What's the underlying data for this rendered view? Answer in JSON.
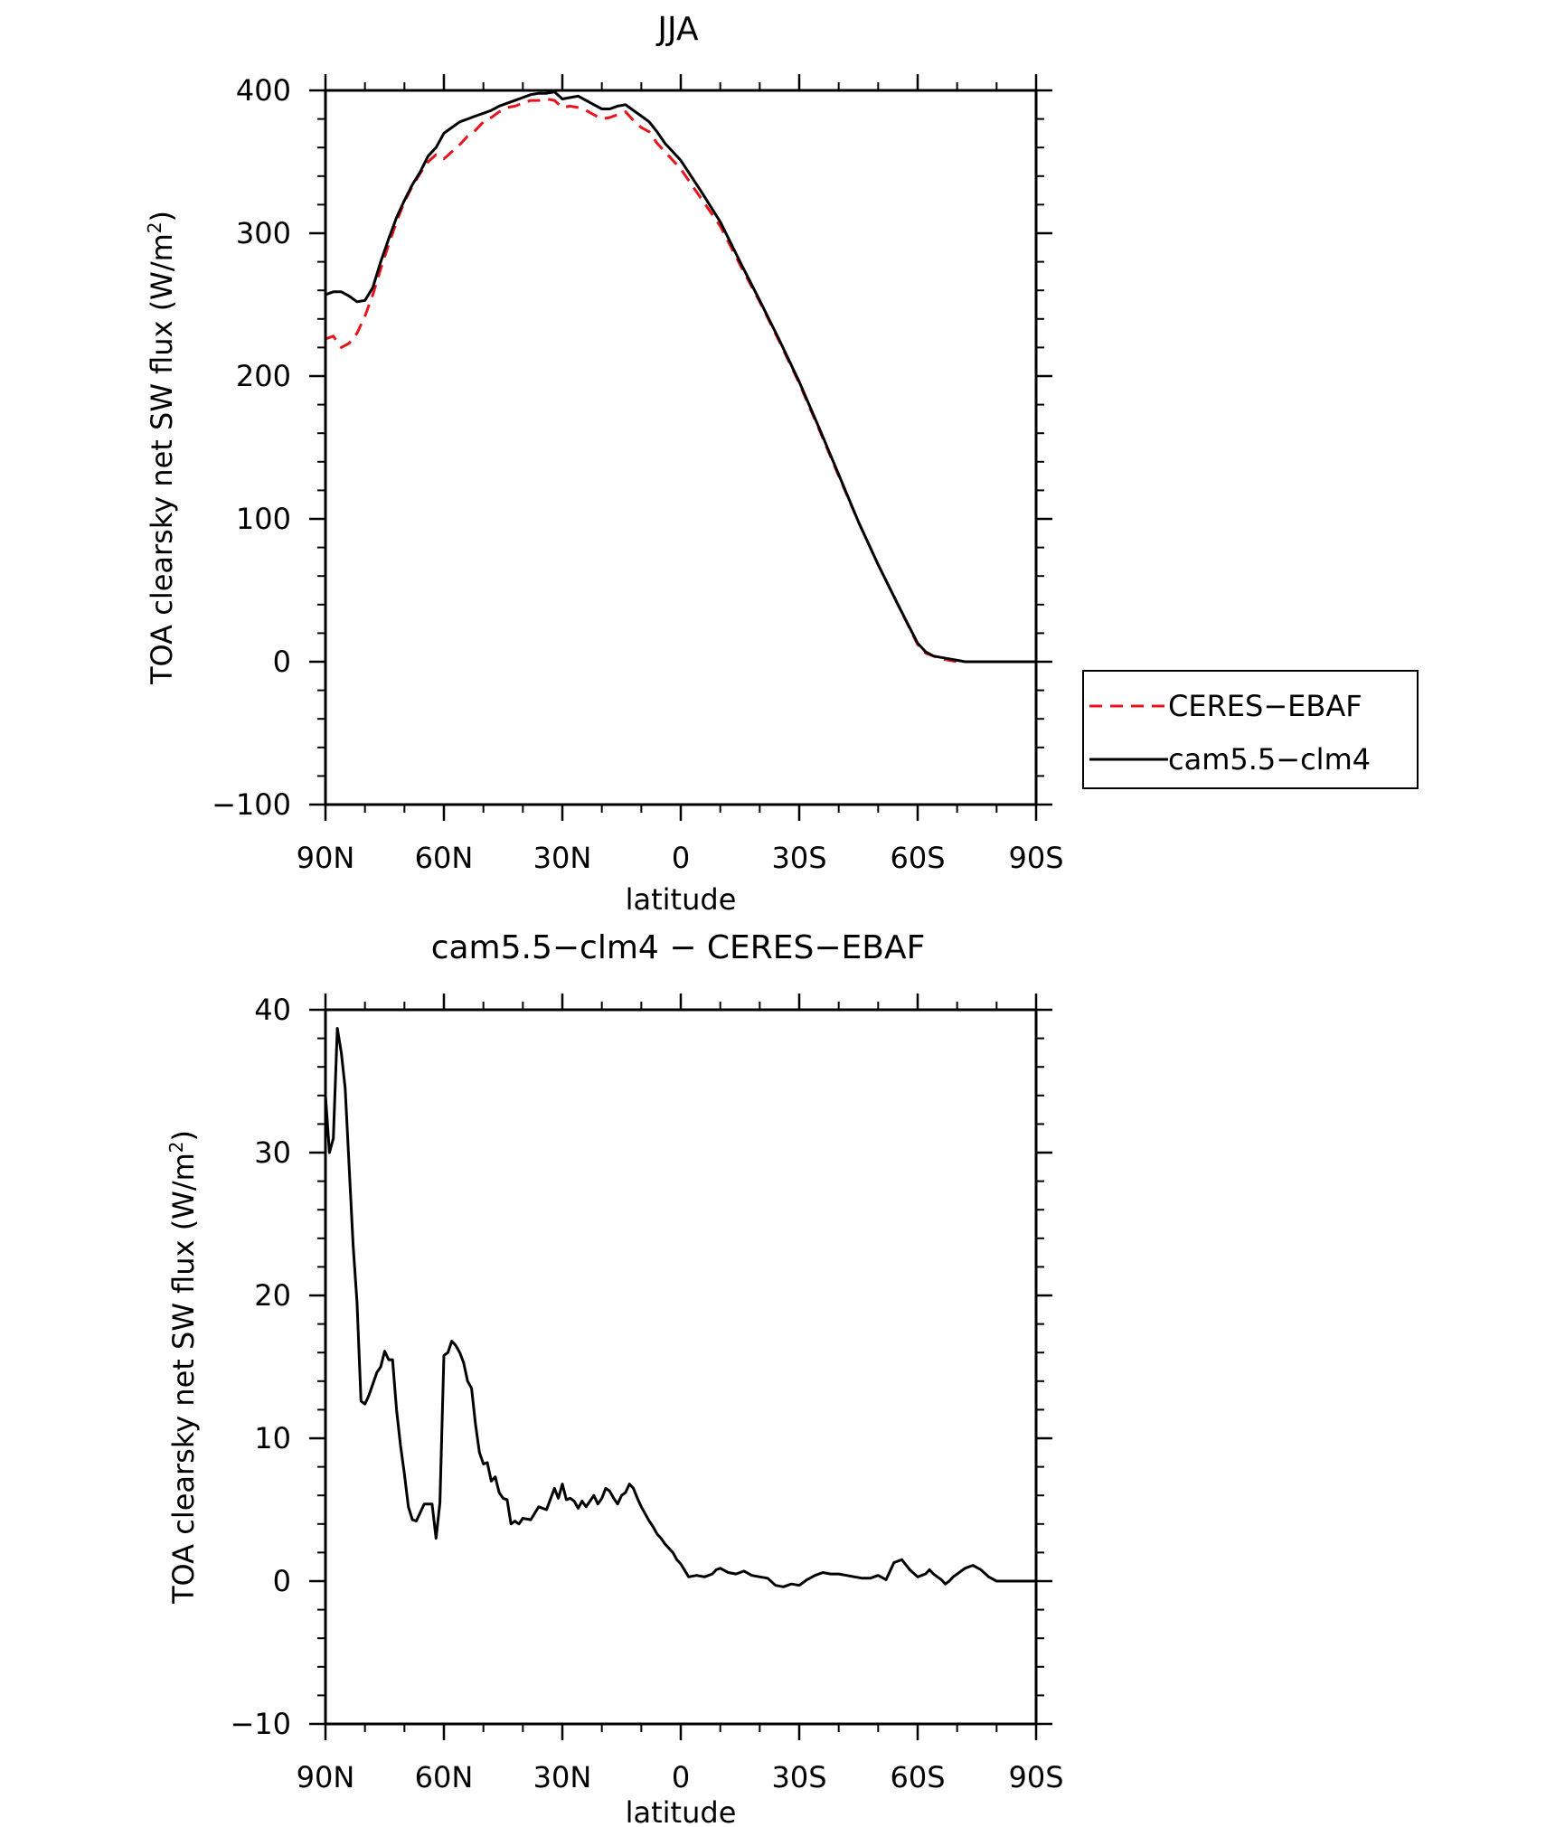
{
  "chart_data": [
    {
      "type": "line",
      "title": "JJA",
      "xlabel": "latitude",
      "ylabel_parts": [
        "TOA clearsky net SW flux (W/m",
        "2",
        ")"
      ],
      "ylim": [
        -100,
        400
      ],
      "yticks": [
        {
          "value": 400,
          "label": "400"
        },
        {
          "value": 300,
          "label": "300"
        },
        {
          "value": 200,
          "label": "200"
        },
        {
          "value": 100,
          "label": "100"
        },
        {
          "value": 0,
          "label": "0"
        },
        {
          "value": -100,
          "label": "−100"
        }
      ],
      "yminor_step": 20,
      "xlim": [
        90,
        -90
      ],
      "xticks": [
        {
          "value": 90,
          "label": "90N"
        },
        {
          "value": 60,
          "label": "60N"
        },
        {
          "value": 30,
          "label": "30N"
        },
        {
          "value": 0,
          "label": "0"
        },
        {
          "value": -30,
          "label": "30S"
        },
        {
          "value": -60,
          "label": "60S"
        },
        {
          "value": -90,
          "label": "90S"
        }
      ],
      "xminor_step": 10,
      "legend": {
        "placement": "right-middle",
        "entries": [
          {
            "name": "CERES−EBAF",
            "color": "#e8141b",
            "style": "dashed"
          },
          {
            "name": "cam5.5−clm4",
            "color": "#000000",
            "style": "solid"
          }
        ]
      },
      "series": [
        {
          "name": "CERES−EBAF",
          "color": "#e8141b",
          "style": "dashed",
          "x": [
            90,
            88,
            86,
            84,
            82,
            80,
            78,
            76,
            74,
            72,
            70,
            68,
            66,
            64,
            62,
            60,
            58,
            56,
            54,
            52,
            50,
            48,
            46,
            44,
            42,
            40,
            38,
            36,
            34,
            32,
            30,
            28,
            26,
            24,
            22,
            20,
            18,
            16,
            14,
            12,
            10,
            8,
            6,
            4,
            0,
            -5,
            -10,
            -15,
            -20,
            -25,
            -30,
            -35,
            -40,
            -45,
            -50,
            -55,
            -60,
            -62,
            -64,
            -66,
            -68,
            -70,
            -72,
            -74,
            -76,
            -78,
            -80,
            -85,
            -90
          ],
          "y": [
            226,
            228,
            220,
            223,
            230,
            242,
            257,
            275,
            292,
            308,
            322,
            333,
            342,
            350,
            355,
            352,
            357,
            362,
            368,
            372,
            378,
            381,
            385,
            388,
            389,
            391,
            393,
            393,
            394,
            393,
            388,
            389,
            388,
            386,
            383,
            380,
            381,
            383,
            385,
            379,
            374,
            371,
            363,
            357,
            345,
            325,
            305,
            278,
            252,
            224,
            195,
            163,
            130,
            98,
            68,
            40,
            12,
            6,
            4,
            2,
            1,
            0,
            0,
            0,
            0,
            0,
            0,
            0,
            0
          ]
        },
        {
          "name": "cam5.5−clm4",
          "color": "#000000",
          "style": "solid",
          "x": [
            90,
            88,
            86,
            84,
            82,
            80,
            78,
            76,
            74,
            72,
            70,
            68,
            66,
            64,
            62,
            60,
            58,
            56,
            54,
            52,
            50,
            48,
            46,
            44,
            42,
            40,
            38,
            36,
            34,
            32,
            30,
            28,
            26,
            24,
            22,
            20,
            18,
            16,
            14,
            12,
            10,
            8,
            6,
            4,
            0,
            -5,
            -10,
            -15,
            -20,
            -25,
            -30,
            -35,
            -40,
            -45,
            -50,
            -55,
            -60,
            -62,
            -64,
            -66,
            -68,
            -70,
            -72,
            -74,
            -76,
            -78,
            -80,
            -85,
            -90
          ],
          "y": [
            257,
            259,
            259,
            256,
            252,
            253,
            262,
            280,
            296,
            311,
            323,
            334,
            343,
            354,
            360,
            370,
            374,
            378,
            380,
            382,
            384,
            386,
            389,
            391,
            393,
            395,
            397,
            398,
            398,
            399,
            394,
            395,
            396,
            393,
            390,
            387,
            387,
            389,
            390,
            386,
            382,
            378,
            371,
            363,
            351,
            330,
            308,
            280,
            253,
            225,
            196,
            164,
            131,
            98,
            68,
            40,
            13,
            7,
            4,
            3,
            2,
            1,
            0,
            0,
            0,
            0,
            0,
            0,
            0
          ]
        }
      ]
    },
    {
      "type": "line",
      "title": "cam5.5−clm4 − CERES−EBAF",
      "xlabel": "latitude",
      "ylabel_parts": [
        "TOA clearsky net SW flux (W/m",
        "2",
        ")"
      ],
      "ylim": [
        -10,
        40
      ],
      "yticks": [
        {
          "value": 40,
          "label": "40"
        },
        {
          "value": 30,
          "label": "30"
        },
        {
          "value": 20,
          "label": "20"
        },
        {
          "value": 10,
          "label": "10"
        },
        {
          "value": 0,
          "label": "0"
        },
        {
          "value": -10,
          "label": "−10"
        }
      ],
      "yminor_step": 2,
      "xlim": [
        90,
        -90
      ],
      "xticks": [
        {
          "value": 90,
          "label": "90N"
        },
        {
          "value": 60,
          "label": "60N"
        },
        {
          "value": 30,
          "label": "30N"
        },
        {
          "value": 0,
          "label": "0"
        },
        {
          "value": -30,
          "label": "30S"
        },
        {
          "value": -60,
          "label": "60S"
        },
        {
          "value": -90,
          "label": "90S"
        }
      ],
      "xminor_step": 10,
      "series": [
        {
          "name": "cam5.5−clm4 − CERES−EBAF",
          "color": "#000000",
          "style": "solid",
          "x": [
            90,
            89,
            88,
            87,
            86,
            85,
            84,
            83,
            82,
            81,
            80,
            79,
            78,
            77,
            76,
            75,
            74,
            73,
            72,
            71,
            70,
            69,
            68,
            67,
            66,
            65,
            64,
            63,
            62,
            61,
            60,
            59,
            58,
            57,
            56,
            55,
            54,
            53,
            52,
            51,
            50,
            49,
            48,
            47,
            46,
            45,
            44,
            43,
            42,
            41,
            40,
            38,
            36,
            34,
            32,
            31,
            30,
            29,
            28,
            27,
            26,
            25,
            24,
            23,
            22,
            21,
            20,
            19,
            18,
            17,
            16,
            15,
            14,
            13,
            12,
            11,
            10,
            9,
            8,
            7,
            6,
            5,
            4,
            3,
            2,
            1,
            0,
            -2,
            -4,
            -6,
            -8,
            -9,
            -10,
            -12,
            -14,
            -16,
            -18,
            -20,
            -22,
            -24,
            -26,
            -28,
            -30,
            -32,
            -34,
            -36,
            -38,
            -40,
            -42,
            -44,
            -46,
            -48,
            -50,
            -52,
            -54,
            -56,
            -58,
            -60,
            -61,
            -62,
            -63,
            -64,
            -65,
            -66,
            -67,
            -68,
            -69,
            -70,
            -72,
            -74,
            -76,
            -78,
            -80,
            -85,
            -90
          ],
          "y": [
            34.0,
            30.0,
            31.0,
            38.7,
            37.0,
            34.5,
            29.0,
            23.5,
            19.5,
            12.6,
            12.4,
            13.0,
            13.8,
            14.6,
            15.0,
            16.1,
            15.5,
            15.5,
            12.0,
            9.5,
            7.5,
            5.2,
            4.3,
            4.2,
            4.8,
            5.4,
            5.4,
            5.4,
            3.0,
            5.5,
            15.8,
            16.0,
            16.8,
            16.5,
            16.0,
            15.3,
            14.0,
            13.5,
            11.0,
            9.0,
            8.2,
            8.3,
            7.0,
            7.3,
            6.2,
            5.8,
            5.7,
            4.0,
            4.2,
            4.0,
            4.4,
            4.3,
            5.2,
            5.0,
            6.5,
            5.8,
            6.8,
            5.7,
            5.8,
            5.6,
            5.1,
            5.6,
            5.2,
            5.6,
            6.0,
            5.4,
            5.8,
            6.5,
            6.3,
            5.8,
            5.4,
            6.0,
            6.2,
            6.8,
            6.5,
            5.8,
            5.2,
            4.7,
            4.2,
            3.8,
            3.3,
            3.0,
            2.6,
            2.3,
            2.0,
            1.5,
            1.2,
            0.3,
            0.4,
            0.3,
            0.5,
            0.8,
            0.9,
            0.6,
            0.5,
            0.7,
            0.4,
            0.3,
            0.2,
            -0.3,
            -0.4,
            -0.2,
            -0.3,
            0.1,
            0.4,
            0.6,
            0.5,
            0.5,
            0.4,
            0.3,
            0.2,
            0.2,
            0.4,
            0.1,
            1.3,
            1.5,
            0.8,
            0.3,
            0.4,
            0.5,
            0.8,
            0.5,
            0.3,
            0.1,
            -0.2,
            0.0,
            0.3,
            0.5,
            0.9,
            1.1,
            0.8,
            0.3,
            0.0,
            0.0,
            0.0
          ]
        }
      ]
    }
  ]
}
